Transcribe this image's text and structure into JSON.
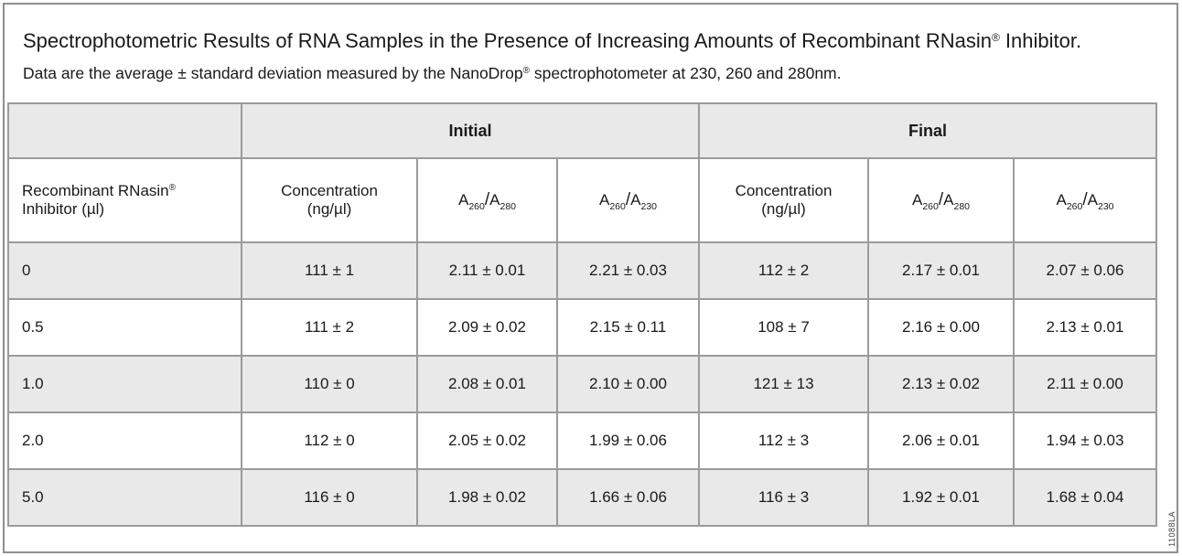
{
  "title": {
    "main_pre": "Spectrophotometric Results of RNA Samples in the Presence of Increasing Amounts of Recombinant RNasin",
    "reg_mark": "®",
    "main_post": " Inhibitor.",
    "note_pre": " Data are the average ± standard deviation measured by the NanoDrop",
    "note_reg": "®",
    "note_post": " spectrophotometer at 230, 260 and 280nm."
  },
  "side_label": "11088LA",
  "table": {
    "groups": {
      "initial": "Initial",
      "final": "Final"
    },
    "col1": {
      "l1": "Recombinant RNasin",
      "reg": "®",
      "l2": "Inhibitor (µl)"
    },
    "conc": {
      "l1": "Concentration",
      "l2": "(ng/µl)"
    },
    "ratio": {
      "base": "A",
      "slash": "/",
      "n260": "260",
      "n280": "280",
      "n230": "230"
    },
    "rows": [
      [
        "0",
        "111 ± 1",
        "2.11 ± 0.01",
        "2.21 ± 0.03",
        "112 ± 2",
        "2.17 ± 0.01",
        "2.07 ± 0.06"
      ],
      [
        "0.5",
        "111 ± 2",
        "2.09 ± 0.02",
        "2.15 ± 0.11",
        "108 ± 7",
        "2.16 ± 0.00",
        "2.13 ± 0.01"
      ],
      [
        "1.0",
        "110 ± 0",
        "2.08 ± 0.01",
        "2.10 ± 0.00",
        "121 ± 13",
        "2.13 ± 0.02",
        "2.11 ± 0.00"
      ],
      [
        "2.0",
        "112 ± 0",
        "2.05 ± 0.02",
        "1.99 ± 0.06",
        "112 ± 3",
        "2.06 ± 0.01",
        "1.94 ± 0.03"
      ],
      [
        "5.0",
        "116 ± 0",
        "1.98 ± 0.02",
        "1.66 ± 0.06",
        "116 ± 3",
        "1.92 ± 0.01",
        "1.68 ± 0.04"
      ]
    ],
    "colors": {
      "header_fill": "#e9e9e9",
      "row_alt_fill": "#e9e9e9",
      "row_fill": "#ffffff",
      "cell_border": "#9b9b9b",
      "frame_border": "#8f8f8f"
    }
  },
  "chart_data": {
    "type": "table",
    "title": "Spectrophotometric Results of RNA Samples in the Presence of Increasing Amounts of Recombinant RNasin® Inhibitor",
    "column_groups": [
      "",
      "Initial",
      "Initial",
      "Initial",
      "Final",
      "Final",
      "Final"
    ],
    "columns": [
      "Recombinant RNasin® Inhibitor (µl)",
      "Concentration (ng/µl)",
      "A260/A280",
      "A260/A230",
      "Concentration (ng/µl)",
      "A260/A280",
      "A260/A230"
    ],
    "rows": [
      [
        "0",
        "111 ± 1",
        "2.11 ± 0.01",
        "2.21 ± 0.03",
        "112 ± 2",
        "2.17 ± 0.01",
        "2.07 ± 0.06"
      ],
      [
        "0.5",
        "111 ± 2",
        "2.09 ± 0.02",
        "2.15 ± 0.11",
        "108 ± 7",
        "2.16 ± 0.00",
        "2.13 ± 0.01"
      ],
      [
        "1.0",
        "110 ± 0",
        "2.08 ± 0.01",
        "2.10 ± 0.00",
        "121 ± 13",
        "2.13 ± 0.02",
        "2.11 ± 0.00"
      ],
      [
        "2.0",
        "112 ± 0",
        "2.05 ± 0.02",
        "1.99 ± 0.06",
        "112 ± 3",
        "2.06 ± 0.01",
        "1.94 ± 0.03"
      ],
      [
        "5.0",
        "116 ± 0",
        "1.98 ± 0.02",
        "1.66 ± 0.06",
        "116 ± 3",
        "1.92 ± 0.01",
        "1.68 ± 0.04"
      ]
    ]
  }
}
